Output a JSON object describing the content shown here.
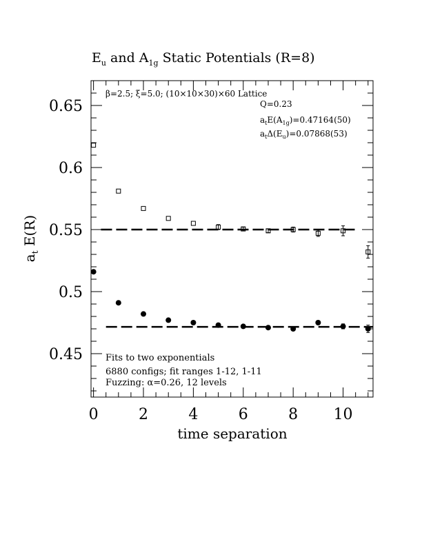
{
  "chart_data": {
    "type": "scatter",
    "title": {
      "pre": "E",
      "sub1": "u",
      "mid": " and A",
      "sub2": "1g",
      "post": " Static Potentials (R=8)"
    },
    "xlabel": "time separation",
    "ylabel": {
      "pre": "a",
      "sub": "t",
      "post": " E(R)"
    },
    "xlim": [
      -0.1,
      11.2
    ],
    "ylim": [
      0.415,
      0.67
    ],
    "x_ticks": [
      0,
      2,
      4,
      6,
      8,
      10
    ],
    "y_ticks": [
      0.45,
      0.5,
      0.55,
      0.6,
      0.65
    ],
    "y_tick_labels": [
      "0.45",
      "0.5",
      "0.55",
      "0.6",
      "0.65"
    ],
    "x_tick_labels": [
      "0",
      "2",
      "4",
      "6",
      "8",
      "10"
    ],
    "series": [
      {
        "marker": "open-square",
        "points": [
          {
            "x": 0,
            "y": 0.618,
            "err": 0.001
          },
          {
            "x": 1,
            "y": 0.581,
            "err": 0.001
          },
          {
            "x": 2,
            "y": 0.567,
            "err": 0.001
          },
          {
            "x": 3,
            "y": 0.559,
            "err": 0.001
          },
          {
            "x": 4,
            "y": 0.555,
            "err": 0.001
          },
          {
            "x": 5,
            "y": 0.552,
            "err": 0.002
          },
          {
            "x": 6,
            "y": 0.5505,
            "err": 0.0015
          },
          {
            "x": 7,
            "y": 0.549,
            "err": 0.0015
          },
          {
            "x": 8,
            "y": 0.55,
            "err": 0.002
          },
          {
            "x": 9,
            "y": 0.547,
            "err": 0.0025
          },
          {
            "x": 10,
            "y": 0.549,
            "err": 0.004
          },
          {
            "x": 11,
            "y": 0.532,
            "err": 0.005
          }
        ],
        "fit": {
          "value": 0.55,
          "x_range": [
            0.3,
            10.5
          ]
        }
      },
      {
        "marker": "filled-circle",
        "points": [
          {
            "x": 0,
            "y": 0.516,
            "err": 0.0005
          },
          {
            "x": 1,
            "y": 0.491,
            "err": 0.0008
          },
          {
            "x": 2,
            "y": 0.482,
            "err": 0.001
          },
          {
            "x": 3,
            "y": 0.477,
            "err": 0.001
          },
          {
            "x": 4,
            "y": 0.475,
            "err": 0.001
          },
          {
            "x": 5,
            "y": 0.473,
            "err": 0.001
          },
          {
            "x": 6,
            "y": 0.472,
            "err": 0.001
          },
          {
            "x": 7,
            "y": 0.471,
            "err": 0.001
          },
          {
            "x": 8,
            "y": 0.47,
            "err": 0.001
          },
          {
            "x": 9,
            "y": 0.475,
            "err": 0.0015
          },
          {
            "x": 10,
            "y": 0.472,
            "err": 0.002
          },
          {
            "x": 11,
            "y": 0.47,
            "err": 0.003
          }
        ],
        "fit": {
          "value": 0.4716,
          "x_range": [
            0.5,
            11.2
          ]
        }
      }
    ],
    "annotations": {
      "lattice": "β=2.5; ξ=5.0; (10×10×30)×60 Lattice",
      "q": "Q=0.23",
      "ea1g": {
        "pre": "a",
        "sub1": "t",
        "mid": "E(A",
        "sub2": "1g",
        "post": ")=0.47164(50)"
      },
      "deu": {
        "pre": "a",
        "sub1": "t",
        "mid": "Δ(E",
        "sub2": "u",
        "post": ")=0.07868(53)"
      },
      "fits": "Fits to two exponentials",
      "configs": "6880 configs; fit ranges 1-12, 1-11",
      "fuzzing": "Fuzzing: α=0.26, 12 levels"
    },
    "grid": false,
    "legend": "none"
  }
}
